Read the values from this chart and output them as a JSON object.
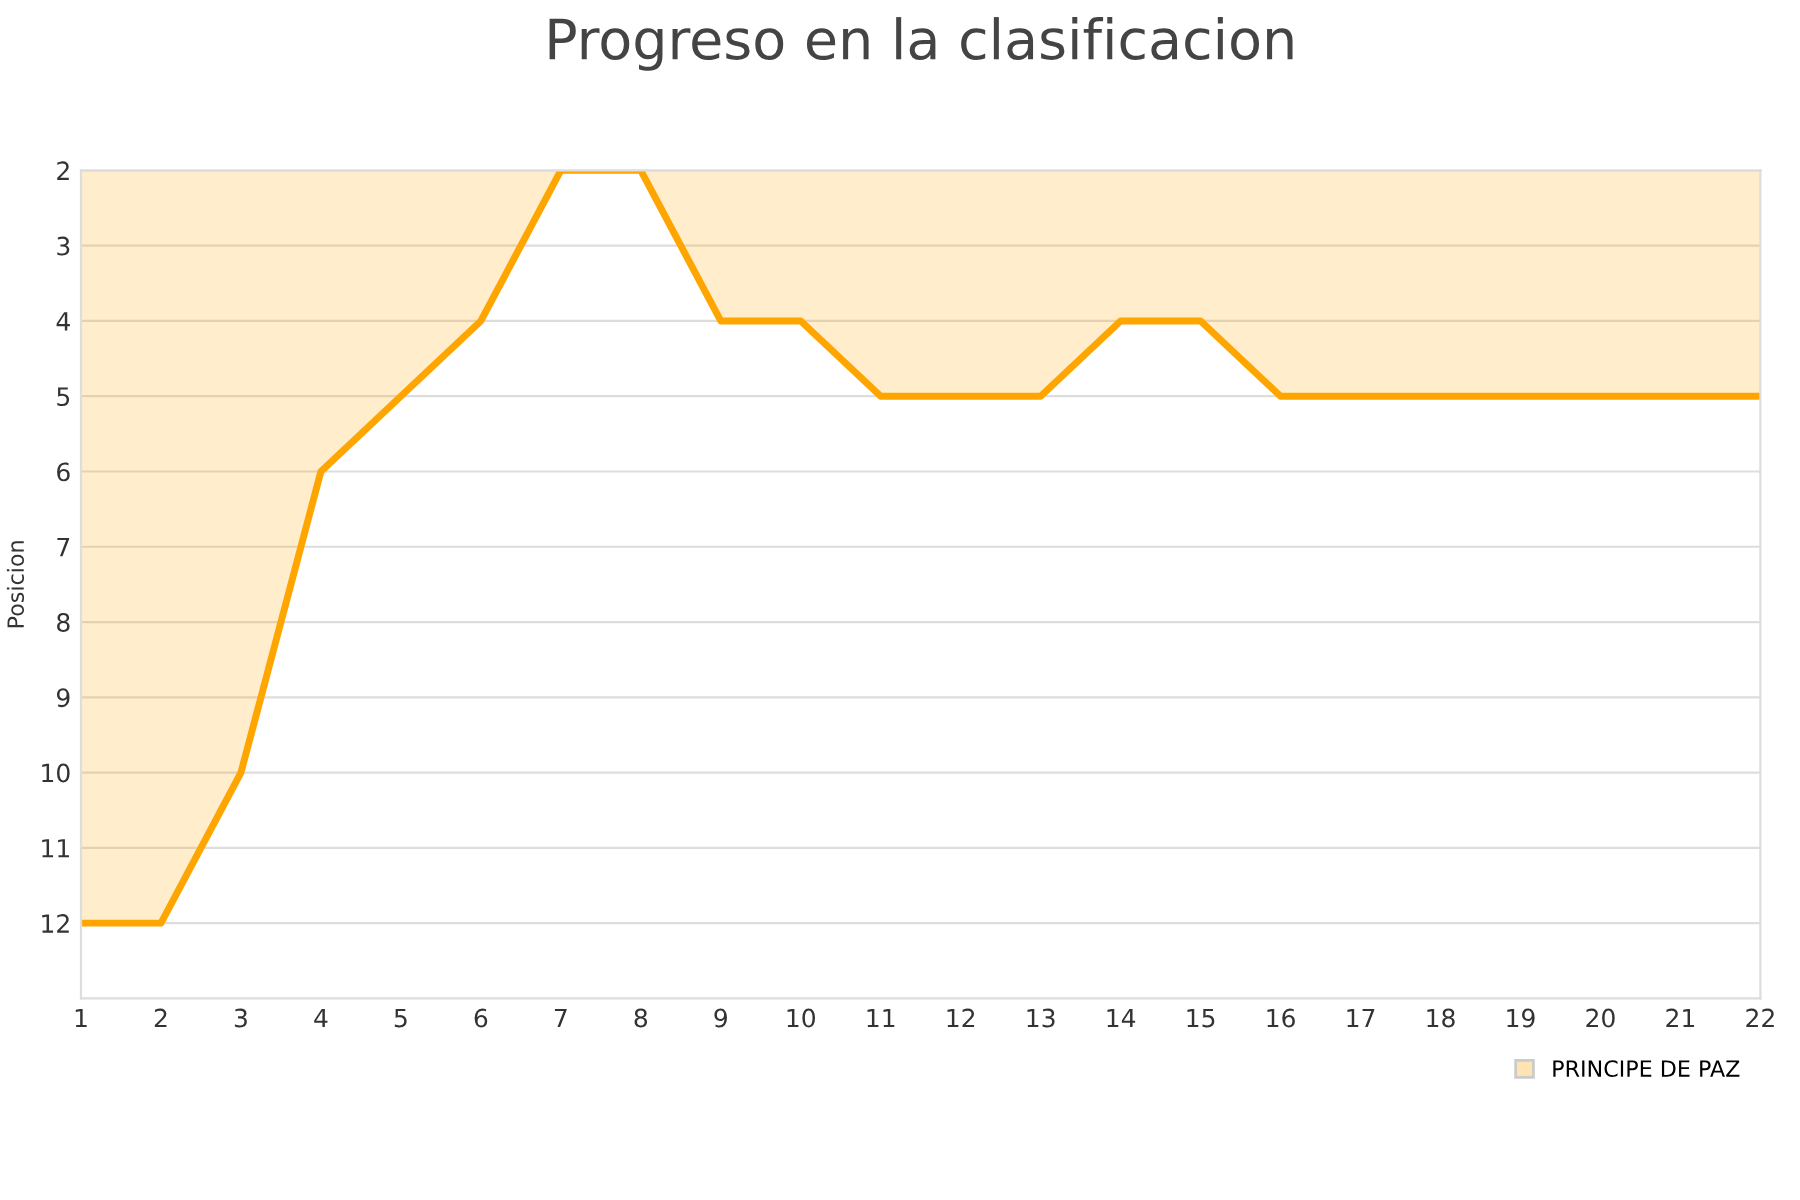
{
  "chart_data": {
    "type": "area",
    "title": "Progreso en la clasificacion",
    "ylabel": "Posicion",
    "x": [
      1,
      2,
      3,
      4,
      5,
      6,
      7,
      8,
      9,
      10,
      11,
      12,
      13,
      14,
      15,
      16,
      17,
      18,
      19,
      20,
      21,
      22
    ],
    "series": [
      {
        "name": "PRINCIPE DE PAZ",
        "color": "#ffa500",
        "values": [
          12,
          12,
          10,
          6,
          5,
          4,
          2,
          2,
          4,
          4,
          5,
          5,
          5,
          4,
          4,
          5,
          5,
          5,
          5,
          5,
          5,
          5
        ]
      }
    ],
    "xlim": [
      1,
      22
    ],
    "xticks": [
      1,
      2,
      3,
      4,
      5,
      6,
      7,
      8,
      9,
      10,
      11,
      12,
      13,
      14,
      15,
      16,
      17,
      18,
      19,
      20,
      21,
      22
    ],
    "ylim": [
      13,
      2
    ],
    "yticks": [
      2,
      3,
      4,
      5,
      6,
      7,
      8,
      9,
      10,
      11,
      12
    ],
    "grid": "y",
    "legend": "bottom right"
  }
}
